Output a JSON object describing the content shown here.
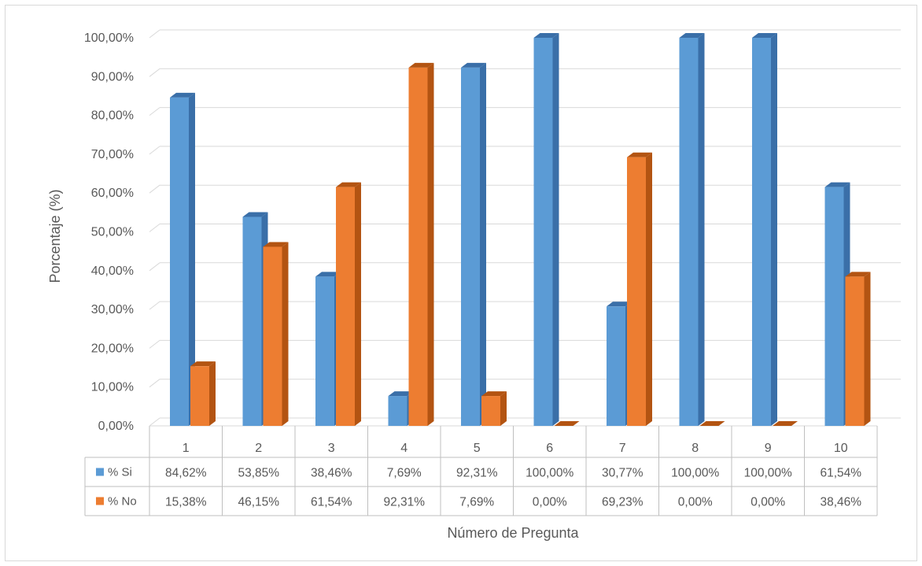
{
  "chart_data": {
    "type": "bar",
    "style": "3d-clustered-column-with-data-table",
    "categories": [
      "1",
      "2",
      "3",
      "4",
      "5",
      "6",
      "7",
      "8",
      "9",
      "10"
    ],
    "series": [
      {
        "name": "% Si",
        "color": "#5b9bd5",
        "side_color": "#3a6fa8",
        "values": [
          84.62,
          53.85,
          38.46,
          7.69,
          92.31,
          100.0,
          30.77,
          100.0,
          100.0,
          61.54
        ],
        "labels": [
          "84,62%",
          "53,85%",
          "38,46%",
          "7,69%",
          "92,31%",
          "100,00%",
          "30,77%",
          "100,00%",
          "100,00%",
          "61,54%"
        ]
      },
      {
        "name": "% No",
        "color": "#ed7d31",
        "side_color": "#b35412",
        "values": [
          15.38,
          46.15,
          61.54,
          92.31,
          7.69,
          0.0,
          69.23,
          0.0,
          0.0,
          38.46
        ],
        "labels": [
          "15,38%",
          "46,15%",
          "61,54%",
          "92,31%",
          "7,69%",
          "0,00%",
          "69,23%",
          "0,00%",
          "0,00%",
          "38,46%"
        ]
      }
    ],
    "yticks": [
      "0,00%",
      "10,00%",
      "20,00%",
      "30,00%",
      "40,00%",
      "50,00%",
      "60,00%",
      "70,00%",
      "80,00%",
      "90,00%",
      "100,00%"
    ],
    "ylim": [
      0,
      100
    ],
    "xlabel": "Número de Pregunta",
    "ylabel": "Porcentaje (%)",
    "grid": true,
    "legend_placement": "data-table"
  }
}
